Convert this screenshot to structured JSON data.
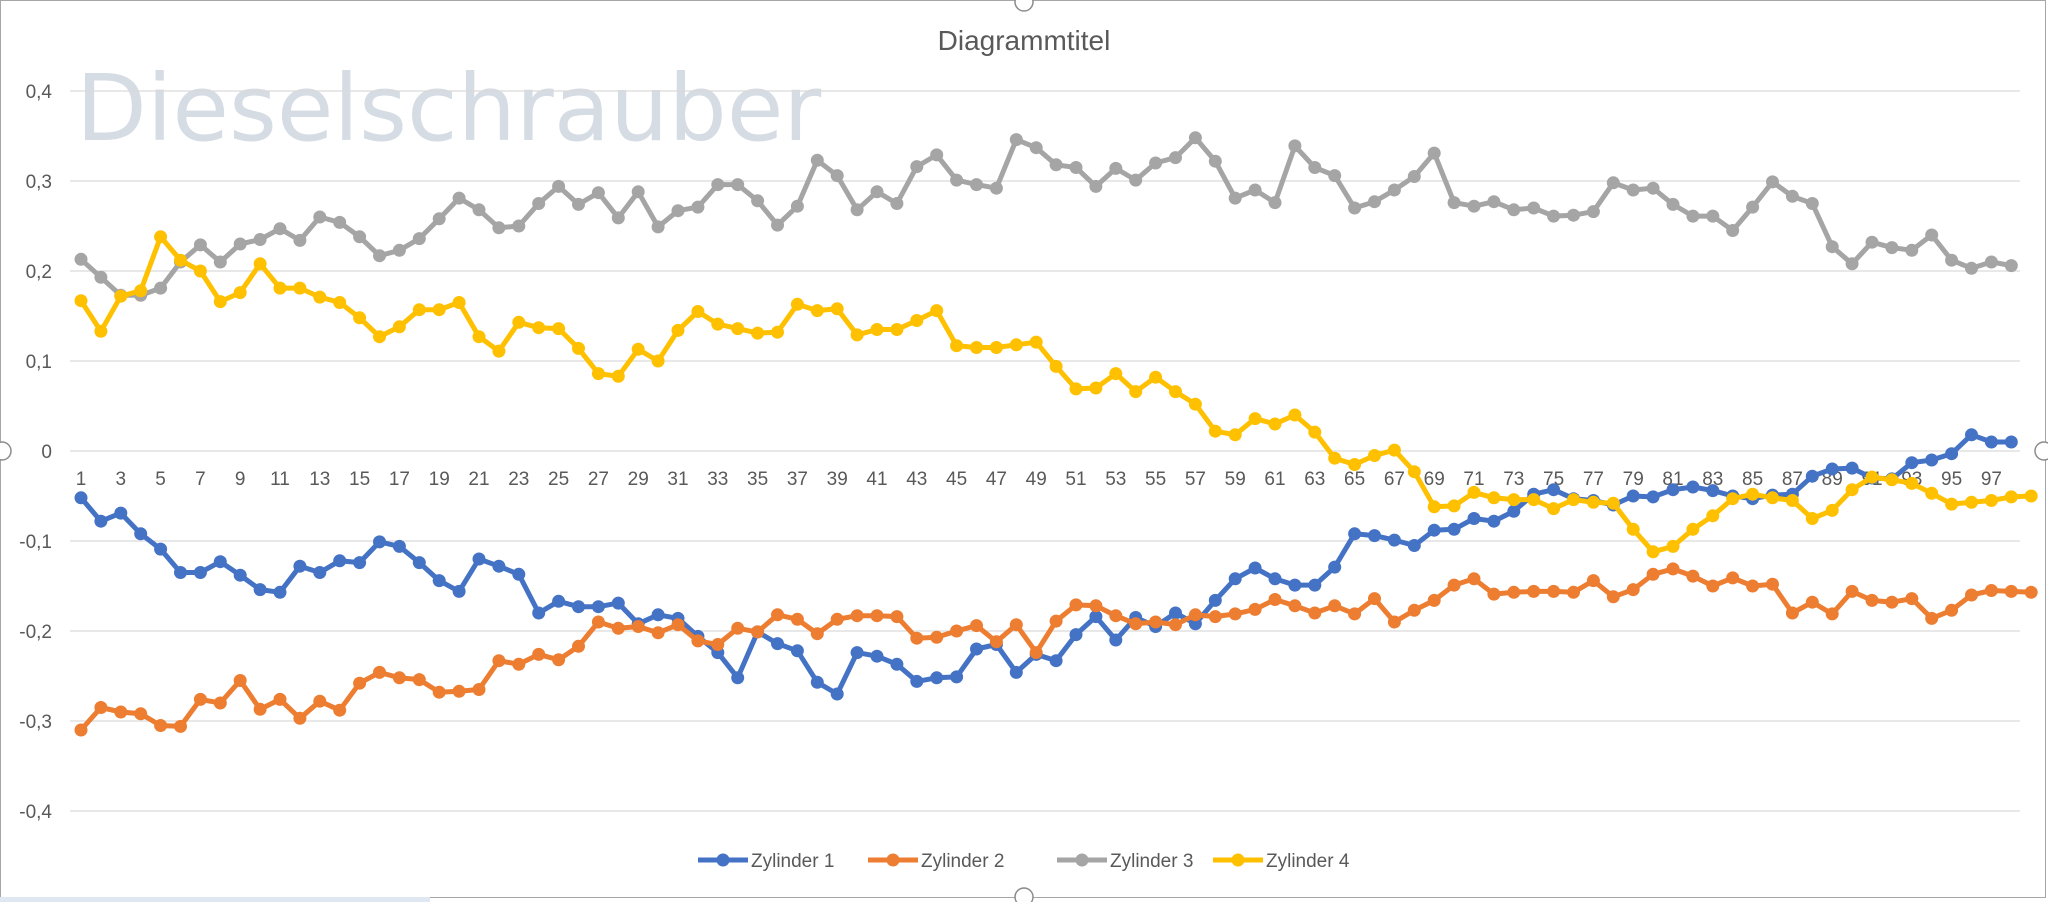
{
  "watermark": "Dieselschrauber",
  "colors": {
    "Zylinder 1": "#4472c4",
    "Zylinder 2": "#ed7d31",
    "Zylinder 3": "#a5a5a5",
    "Zylinder 4": "#ffc000",
    "grid": "#d9d9d9",
    "text": "#595959"
  },
  "chart_data": {
    "type": "line",
    "title": "Diagrammtitel",
    "xlabel": "",
    "ylabel": "",
    "ylim": [
      -0.4,
      0.4
    ],
    "yticks": [
      "-0,4",
      "-0,3",
      "-0,2",
      "-0,1",
      "0",
      "0,1",
      "0,2",
      "0,3",
      "0,4"
    ],
    "ytick_values": [
      -0.4,
      -0.3,
      -0.2,
      -0.1,
      0,
      0.1,
      0.2,
      0.3,
      0.4
    ],
    "x": [
      1,
      2,
      3,
      4,
      5,
      6,
      7,
      8,
      9,
      10,
      11,
      12,
      13,
      14,
      15,
      16,
      17,
      18,
      19,
      20,
      21,
      22,
      23,
      24,
      25,
      26,
      27,
      28,
      29,
      30,
      31,
      32,
      33,
      34,
      35,
      36,
      37,
      38,
      39,
      40,
      41,
      42,
      43,
      44,
      45,
      46,
      47,
      48,
      49,
      50,
      51,
      52,
      53,
      54,
      55,
      56,
      57,
      58,
      59,
      60,
      61,
      62,
      63,
      64,
      65,
      66,
      67,
      68,
      69,
      70,
      71,
      72,
      73,
      74,
      75,
      76,
      77,
      78,
      79,
      80,
      81,
      82,
      83,
      84,
      85,
      86,
      87,
      88,
      89,
      90,
      91,
      92,
      93,
      94,
      95,
      96,
      97,
      98,
      99
    ],
    "xtick_labels": [
      "1",
      "3",
      "5",
      "7",
      "9",
      "11",
      "13",
      "15",
      "17",
      "19",
      "21",
      "23",
      "25",
      "27",
      "29",
      "31",
      "33",
      "35",
      "37",
      "39",
      "41",
      "43",
      "45",
      "47",
      "49",
      "51",
      "53",
      "55",
      "57",
      "59",
      "61",
      "63",
      "65",
      "67",
      "69",
      "71",
      "73",
      "75",
      "77",
      "79",
      "81",
      "83",
      "85",
      "87",
      "89",
      "91",
      "93",
      "95",
      "97"
    ],
    "grid": true,
    "legend_position": "bottom",
    "series": [
      {
        "name": "Zylinder 1",
        "values": [
          -0.052,
          -0.078,
          -0.069,
          -0.092,
          -0.109,
          -0.135,
          -0.135,
          -0.123,
          -0.138,
          -0.154,
          -0.157,
          -0.128,
          -0.135,
          -0.122,
          -0.124,
          -0.101,
          -0.106,
          -0.124,
          -0.144,
          -0.156,
          -0.12,
          -0.128,
          -0.137,
          -0.18,
          -0.167,
          -0.173,
          -0.173,
          -0.169,
          -0.192,
          -0.182,
          -0.186,
          -0.206,
          -0.224,
          -0.252,
          -0.201,
          -0.214,
          -0.222,
          -0.257,
          -0.27,
          -0.224,
          -0.228,
          -0.237,
          -0.256,
          -0.252,
          -0.251,
          -0.22,
          -0.215,
          -0.246,
          -0.226,
          -0.233,
          -0.204,
          -0.184,
          -0.21,
          -0.185,
          -0.195,
          -0.18,
          -0.192,
          -0.166,
          -0.142,
          -0.13,
          -0.142,
          -0.149,
          -0.149,
          -0.129,
          -0.092,
          -0.094,
          -0.099,
          -0.105,
          -0.088,
          -0.087,
          -0.075,
          -0.078,
          -0.067,
          -0.048,
          -0.043,
          -0.053,
          -0.055,
          -0.06,
          -0.05,
          -0.051,
          -0.043,
          -0.04,
          -0.044,
          -0.05,
          -0.053,
          -0.049,
          -0.048,
          -0.028,
          -0.02,
          -0.019,
          -0.03,
          -0.031,
          -0.013,
          -0.01,
          -0.003,
          0.018,
          0.01,
          0.01,
          null
        ]
      },
      {
        "name": "Zylinder 2",
        "values": [
          -0.31,
          -0.285,
          -0.29,
          -0.292,
          -0.305,
          -0.306,
          -0.276,
          -0.28,
          -0.255,
          -0.287,
          -0.276,
          -0.297,
          -0.278,
          -0.288,
          -0.258,
          -0.246,
          -0.252,
          -0.254,
          -0.268,
          -0.267,
          -0.265,
          -0.233,
          -0.237,
          -0.226,
          -0.232,
          -0.217,
          -0.19,
          -0.197,
          -0.195,
          -0.202,
          -0.193,
          -0.211,
          -0.215,
          -0.197,
          -0.201,
          -0.182,
          -0.187,
          -0.203,
          -0.187,
          -0.183,
          -0.183,
          -0.184,
          -0.208,
          -0.207,
          -0.2,
          -0.194,
          -0.212,
          -0.193,
          -0.224,
          -0.189,
          -0.171,
          -0.172,
          -0.183,
          -0.192,
          -0.19,
          -0.193,
          -0.182,
          -0.184,
          -0.181,
          -0.176,
          -0.165,
          -0.172,
          -0.18,
          -0.172,
          -0.181,
          -0.164,
          -0.19,
          -0.177,
          -0.166,
          -0.149,
          -0.142,
          -0.159,
          -0.157,
          -0.156,
          -0.156,
          -0.157,
          -0.144,
          -0.162,
          -0.154,
          -0.137,
          -0.131,
          -0.139,
          -0.15,
          -0.141,
          -0.15,
          -0.148,
          -0.18,
          -0.168,
          -0.181,
          -0.156,
          -0.166,
          -0.168,
          -0.164,
          -0.186,
          -0.177,
          -0.16,
          -0.155,
          -0.156,
          -0.157
        ]
      },
      {
        "name": "Zylinder 3",
        "values": [
          0.213,
          0.193,
          0.173,
          0.173,
          0.181,
          0.21,
          0.229,
          0.21,
          0.23,
          0.235,
          0.247,
          0.234,
          0.26,
          0.254,
          0.238,
          0.217,
          0.223,
          0.236,
          0.258,
          0.281,
          0.268,
          0.248,
          0.25,
          0.275,
          0.294,
          0.274,
          0.287,
          0.259,
          0.288,
          0.249,
          0.267,
          0.271,
          0.296,
          0.296,
          0.278,
          0.251,
          0.272,
          0.323,
          0.306,
          0.268,
          0.288,
          0.275,
          0.316,
          0.329,
          0.301,
          0.296,
          0.292,
          0.346,
          0.337,
          0.318,
          0.315,
          0.294,
          0.314,
          0.301,
          0.32,
          0.326,
          0.348,
          0.322,
          0.281,
          0.29,
          0.276,
          0.339,
          0.315,
          0.306,
          0.27,
          0.277,
          0.29,
          0.305,
          0.331,
          0.276,
          0.272,
          0.277,
          0.268,
          0.27,
          0.261,
          0.262,
          0.266,
          0.298,
          0.29,
          0.292,
          0.274,
          0.261,
          0.261,
          0.245,
          0.271,
          0.299,
          0.283,
          0.275,
          0.227,
          0.208,
          0.232,
          0.226,
          0.223,
          0.24,
          0.212,
          0.203,
          0.21,
          0.206,
          null
        ]
      },
      {
        "name": "Zylinder 4",
        "values": [
          0.167,
          0.133,
          0.172,
          0.178,
          0.238,
          0.212,
          0.2,
          0.166,
          0.176,
          0.208,
          0.181,
          0.181,
          0.171,
          0.165,
          0.148,
          0.127,
          0.138,
          0.157,
          0.157,
          0.165,
          0.127,
          0.111,
          0.143,
          0.137,
          0.136,
          0.114,
          0.086,
          0.083,
          0.113,
          0.1,
          0.134,
          0.155,
          0.141,
          0.136,
          0.131,
          0.132,
          0.163,
          0.156,
          0.158,
          0.129,
          0.135,
          0.135,
          0.145,
          0.156,
          0.117,
          0.115,
          0.115,
          0.118,
          0.121,
          0.094,
          0.069,
          0.07,
          0.086,
          0.066,
          0.082,
          0.066,
          0.052,
          0.022,
          0.018,
          0.036,
          0.03,
          0.04,
          0.021,
          -0.008,
          -0.015,
          -0.005,
          0.001,
          -0.023,
          -0.062,
          -0.061,
          -0.046,
          -0.052,
          -0.054,
          -0.054,
          -0.064,
          -0.054,
          -0.057,
          -0.058,
          -0.087,
          -0.112,
          -0.106,
          -0.087,
          -0.072,
          -0.053,
          -0.048,
          -0.052,
          -0.055,
          -0.075,
          -0.066,
          -0.043,
          -0.029,
          -0.032,
          -0.036,
          -0.047,
          -0.059,
          -0.057,
          -0.055,
          -0.051,
          -0.05
        ]
      }
    ]
  }
}
